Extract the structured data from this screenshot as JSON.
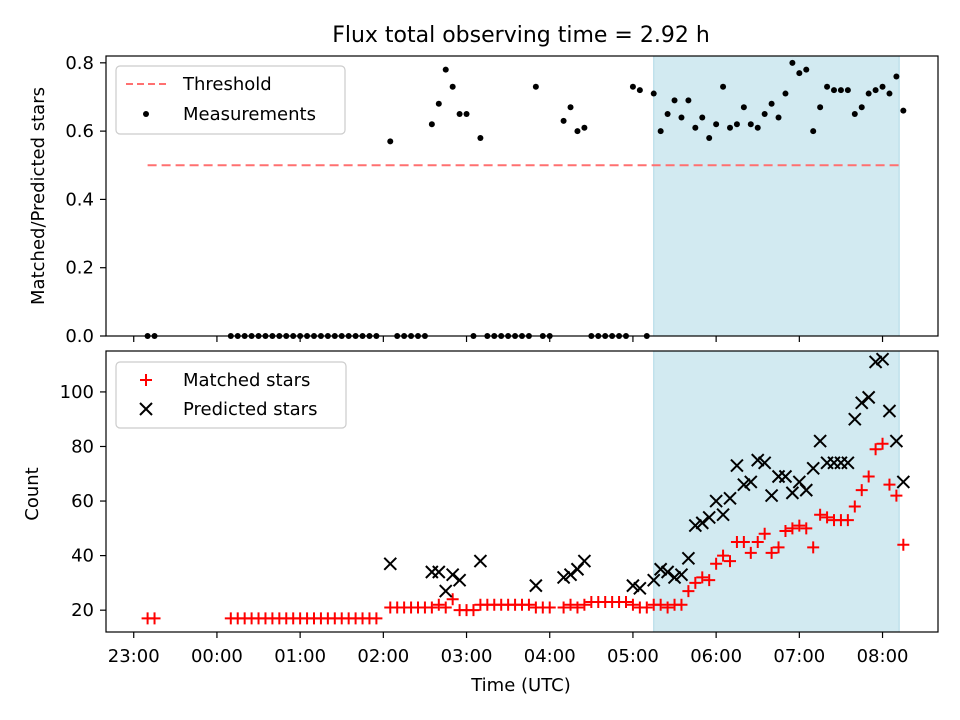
{
  "title": "Flux total observing time = 2.92 h",
  "chart_data": [
    {
      "type": "scatter",
      "title": "Flux total observing time = 2.92 h",
      "xlabel": "",
      "ylabel": "Matched/Predicted stars",
      "xlim": [
        "22:40",
        "08:40"
      ],
      "ylim": [
        0,
        0.82
      ],
      "yticks": [
        0,
        0.2,
        0.4,
        0.6,
        0.8
      ],
      "ytick_labels": [
        "0.0",
        "0.2",
        "0.4",
        "0.6",
        "0.8"
      ],
      "legend_position": "upper-left",
      "shaded_span": {
        "start": "05:15",
        "end": "08:12",
        "color": "#add8e6"
      },
      "threshold": {
        "name": "Threshold",
        "value": 0.5,
        "x_start": "23:10",
        "x_end": "08:12",
        "color": "#ff7070",
        "style": "dashed"
      },
      "series": [
        {
          "name": "Measurements",
          "marker": "dot",
          "color": "#000000",
          "points": [
            [
              "23:10",
              0
            ],
            [
              "23:15",
              0
            ],
            [
              "00:10",
              0
            ],
            [
              "00:15",
              0
            ],
            [
              "00:20",
              0
            ],
            [
              "00:25",
              0
            ],
            [
              "00:30",
              0
            ],
            [
              "00:35",
              0
            ],
            [
              "00:40",
              0
            ],
            [
              "00:45",
              0
            ],
            [
              "00:50",
              0
            ],
            [
              "00:55",
              0
            ],
            [
              "01:00",
              0
            ],
            [
              "01:05",
              0
            ],
            [
              "01:10",
              0
            ],
            [
              "01:15",
              0
            ],
            [
              "01:20",
              0
            ],
            [
              "01:25",
              0
            ],
            [
              "01:30",
              0
            ],
            [
              "01:35",
              0
            ],
            [
              "01:40",
              0
            ],
            [
              "01:45",
              0
            ],
            [
              "01:50",
              0
            ],
            [
              "01:55",
              0
            ],
            [
              "02:05",
              0.57
            ],
            [
              "02:10",
              0
            ],
            [
              "02:15",
              0
            ],
            [
              "02:20",
              0
            ],
            [
              "02:25",
              0
            ],
            [
              "02:30",
              0
            ],
            [
              "02:35",
              0.62
            ],
            [
              "02:40",
              0.68
            ],
            [
              "02:45",
              0.78
            ],
            [
              "02:50",
              0.73
            ],
            [
              "02:55",
              0.65
            ],
            [
              "03:00",
              0.65
            ],
            [
              "03:05",
              0
            ],
            [
              "03:10",
              0.58
            ],
            [
              "03:15",
              0
            ],
            [
              "03:20",
              0
            ],
            [
              "03:25",
              0
            ],
            [
              "03:30",
              0
            ],
            [
              "03:35",
              0
            ],
            [
              "03:40",
              0
            ],
            [
              "03:45",
              0
            ],
            [
              "03:50",
              0.73
            ],
            [
              "03:55",
              0
            ],
            [
              "04:00",
              0
            ],
            [
              "04:10",
              0.63
            ],
            [
              "04:15",
              0.67
            ],
            [
              "04:20",
              0.6
            ],
            [
              "04:25",
              0.61
            ],
            [
              "04:30",
              0
            ],
            [
              "04:35",
              0
            ],
            [
              "04:40",
              0
            ],
            [
              "04:45",
              0
            ],
            [
              "04:50",
              0
            ],
            [
              "04:55",
              0
            ],
            [
              "05:00",
              0.73
            ],
            [
              "05:05",
              0.72
            ],
            [
              "05:10",
              0
            ],
            [
              "05:15",
              0.71
            ],
            [
              "05:20",
              0.6
            ],
            [
              "05:25",
              0.65
            ],
            [
              "05:30",
              0.69
            ],
            [
              "05:35",
              0.64
            ],
            [
              "05:40",
              0.69
            ],
            [
              "05:45",
              0.61
            ],
            [
              "05:50",
              0.64
            ],
            [
              "05:55",
              0.58
            ],
            [
              "06:00",
              0.62
            ],
            [
              "06:05",
              0.73
            ],
            [
              "06:10",
              0.61
            ],
            [
              "06:15",
              0.62
            ],
            [
              "06:20",
              0.67
            ],
            [
              "06:25",
              0.62
            ],
            [
              "06:30",
              0.61
            ],
            [
              "06:35",
              0.65
            ],
            [
              "06:40",
              0.68
            ],
            [
              "06:45",
              0.64
            ],
            [
              "06:50",
              0.71
            ],
            [
              "06:55",
              0.8
            ],
            [
              "07:00",
              0.77
            ],
            [
              "07:05",
              0.78
            ],
            [
              "07:10",
              0.6
            ],
            [
              "07:15",
              0.67
            ],
            [
              "07:20",
              0.73
            ],
            [
              "07:25",
              0.72
            ],
            [
              "07:30",
              0.72
            ],
            [
              "07:35",
              0.72
            ],
            [
              "07:40",
              0.65
            ],
            [
              "07:45",
              0.67
            ],
            [
              "07:50",
              0.71
            ],
            [
              "07:55",
              0.72
            ],
            [
              "08:00",
              0.73
            ],
            [
              "08:05",
              0.71
            ],
            [
              "08:10",
              0.76
            ],
            [
              "08:15",
              0.66
            ]
          ]
        }
      ]
    },
    {
      "type": "scatter",
      "title": "",
      "xlabel": "Time (UTC)",
      "ylabel": "Count",
      "xlim": [
        "22:40",
        "08:40"
      ],
      "ylim": [
        12,
        115
      ],
      "xticks": [
        "23:00",
        "00:00",
        "01:00",
        "02:00",
        "03:00",
        "04:00",
        "05:00",
        "06:00",
        "07:00",
        "08:00"
      ],
      "yticks": [
        20,
        40,
        60,
        80,
        100
      ],
      "ytick_labels": [
        "20",
        "40",
        "60",
        "80",
        "100"
      ],
      "legend_position": "upper-left",
      "shaded_span": {
        "start": "05:15",
        "end": "08:12",
        "color": "#add8e6"
      },
      "series": [
        {
          "name": "Matched stars",
          "marker": "plus",
          "color": "#ff0000",
          "points": [
            [
              "23:10",
              17
            ],
            [
              "23:15",
              17
            ],
            [
              "00:10",
              17
            ],
            [
              "00:15",
              17
            ],
            [
              "00:20",
              17
            ],
            [
              "00:25",
              17
            ],
            [
              "00:30",
              17
            ],
            [
              "00:35",
              17
            ],
            [
              "00:40",
              17
            ],
            [
              "00:45",
              17
            ],
            [
              "00:50",
              17
            ],
            [
              "00:55",
              17
            ],
            [
              "01:00",
              17
            ],
            [
              "01:05",
              17
            ],
            [
              "01:10",
              17
            ],
            [
              "01:15",
              17
            ],
            [
              "01:20",
              17
            ],
            [
              "01:25",
              17
            ],
            [
              "01:30",
              17
            ],
            [
              "01:35",
              17
            ],
            [
              "01:40",
              17
            ],
            [
              "01:45",
              17
            ],
            [
              "01:50",
              17
            ],
            [
              "01:55",
              17
            ],
            [
              "02:05",
              21
            ],
            [
              "02:10",
              21
            ],
            [
              "02:15",
              21
            ],
            [
              "02:20",
              21
            ],
            [
              "02:25",
              21
            ],
            [
              "02:30",
              21
            ],
            [
              "02:35",
              21
            ],
            [
              "02:40",
              22
            ],
            [
              "02:45",
              21
            ],
            [
              "02:50",
              24
            ],
            [
              "02:55",
              20
            ],
            [
              "03:00",
              20
            ],
            [
              "03:05",
              20
            ],
            [
              "03:10",
              22
            ],
            [
              "03:15",
              22
            ],
            [
              "03:20",
              22
            ],
            [
              "03:25",
              22
            ],
            [
              "03:30",
              22
            ],
            [
              "03:35",
              22
            ],
            [
              "03:40",
              22
            ],
            [
              "03:45",
              22
            ],
            [
              "03:50",
              21
            ],
            [
              "03:55",
              21
            ],
            [
              "04:00",
              21
            ],
            [
              "04:10",
              21
            ],
            [
              "04:15",
              22
            ],
            [
              "04:20",
              21
            ],
            [
              "04:25",
              22
            ],
            [
              "04:30",
              23
            ],
            [
              "04:35",
              23
            ],
            [
              "04:40",
              23
            ],
            [
              "04:45",
              23
            ],
            [
              "04:50",
              23
            ],
            [
              "04:55",
              23
            ],
            [
              "05:00",
              22
            ],
            [
              "05:05",
              21
            ],
            [
              "05:10",
              21
            ],
            [
              "05:15",
              22
            ],
            [
              "05:20",
              22
            ],
            [
              "05:25",
              21
            ],
            [
              "05:30",
              22
            ],
            [
              "05:35",
              22
            ],
            [
              "05:40",
              27
            ],
            [
              "05:45",
              30
            ],
            [
              "05:50",
              32
            ],
            [
              "05:55",
              31
            ],
            [
              "06:00",
              37
            ],
            [
              "06:05",
              40
            ],
            [
              "06:10",
              38
            ],
            [
              "06:15",
              45
            ],
            [
              "06:20",
              45
            ],
            [
              "06:25",
              41
            ],
            [
              "06:30",
              45
            ],
            [
              "06:35",
              48
            ],
            [
              "06:40",
              41
            ],
            [
              "06:45",
              43
            ],
            [
              "06:50",
              49
            ],
            [
              "06:55",
              50
            ],
            [
              "07:00",
              51
            ],
            [
              "07:05",
              50
            ],
            [
              "07:10",
              43
            ],
            [
              "07:15",
              55
            ],
            [
              "07:20",
              54
            ],
            [
              "07:25",
              53
            ],
            [
              "07:30",
              53
            ],
            [
              "07:35",
              53
            ],
            [
              "07:40",
              58
            ],
            [
              "07:45",
              64
            ],
            [
              "07:50",
              69
            ],
            [
              "07:55",
              79
            ],
            [
              "08:00",
              81
            ],
            [
              "08:05",
              66
            ],
            [
              "08:10",
              62
            ],
            [
              "08:15",
              44
            ]
          ]
        },
        {
          "name": "Predicted stars",
          "marker": "x",
          "color": "#000000",
          "points": [
            [
              "02:05",
              37
            ],
            [
              "02:35",
              34
            ],
            [
              "02:40",
              34
            ],
            [
              "02:45",
              27
            ],
            [
              "02:50",
              33
            ],
            [
              "02:55",
              31
            ],
            [
              "03:10",
              38
            ],
            [
              "03:50",
              29
            ],
            [
              "04:10",
              32
            ],
            [
              "04:15",
              33
            ],
            [
              "04:20",
              35
            ],
            [
              "04:25",
              38
            ],
            [
              "05:00",
              29
            ],
            [
              "05:05",
              28
            ],
            [
              "05:15",
              31
            ],
            [
              "05:20",
              35
            ],
            [
              "05:25",
              34
            ],
            [
              "05:30",
              32
            ],
            [
              "05:35",
              33
            ],
            [
              "05:40",
              39
            ],
            [
              "05:45",
              51
            ],
            [
              "05:50",
              52
            ],
            [
              "05:55",
              54
            ],
            [
              "06:00",
              60
            ],
            [
              "06:05",
              55
            ],
            [
              "06:10",
              61
            ],
            [
              "06:15",
              73
            ],
            [
              "06:20",
              66
            ],
            [
              "06:25",
              67
            ],
            [
              "06:30",
              75
            ],
            [
              "06:35",
              74
            ],
            [
              "06:40",
              62
            ],
            [
              "06:45",
              69
            ],
            [
              "06:50",
              69
            ],
            [
              "06:55",
              63
            ],
            [
              "07:00",
              67
            ],
            [
              "07:05",
              64
            ],
            [
              "07:10",
              72
            ],
            [
              "07:15",
              82
            ],
            [
              "07:20",
              74
            ],
            [
              "07:25",
              74
            ],
            [
              "07:30",
              74
            ],
            [
              "07:35",
              74
            ],
            [
              "07:40",
              90
            ],
            [
              "07:45",
              96
            ],
            [
              "07:50",
              98
            ],
            [
              "07:55",
              111
            ],
            [
              "08:00",
              112
            ],
            [
              "08:05",
              93
            ],
            [
              "08:10",
              82
            ],
            [
              "08:15",
              67
            ]
          ]
        }
      ]
    }
  ]
}
